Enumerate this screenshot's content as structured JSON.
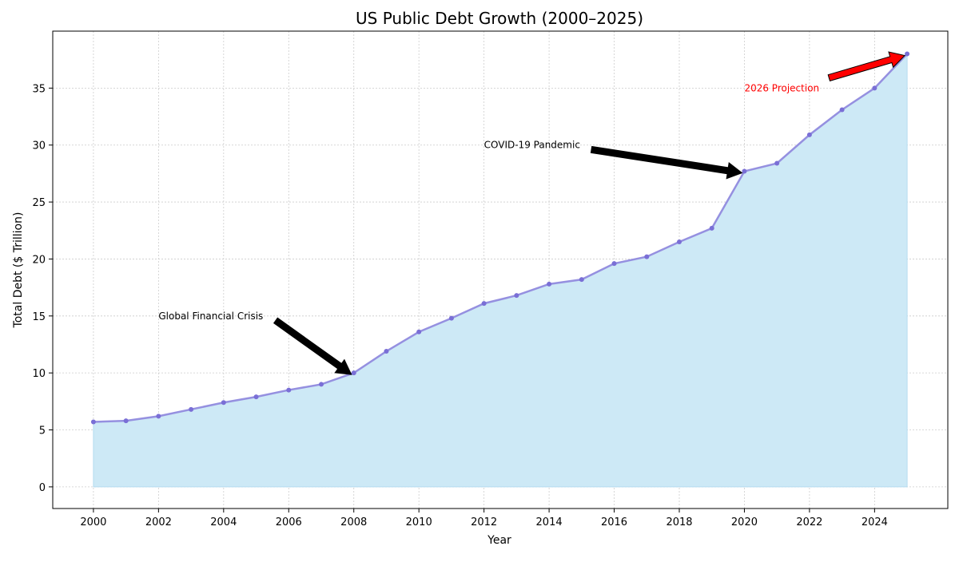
{
  "chart_data": {
    "type": "area",
    "title": "US Public Debt Growth (2000–2025)",
    "xlabel": "Year",
    "ylabel": "Total Debt ($ Trillion)",
    "xlim": [
      1998.75,
      2026.25
    ],
    "ylim": [
      -1.9,
      40
    ],
    "grid": true,
    "x_ticks": [
      2000,
      2002,
      2004,
      2006,
      2008,
      2010,
      2012,
      2014,
      2016,
      2018,
      2020,
      2022,
      2024
    ],
    "y_ticks": [
      0,
      5,
      10,
      15,
      20,
      25,
      30,
      35
    ],
    "x": [
      2000,
      2001,
      2002,
      2003,
      2004,
      2005,
      2006,
      2007,
      2008,
      2009,
      2010,
      2011,
      2012,
      2013,
      2014,
      2015,
      2016,
      2017,
      2018,
      2019,
      2020,
      2021,
      2022,
      2023,
      2024,
      2025
    ],
    "values": [
      5.7,
      5.8,
      6.2,
      6.8,
      7.4,
      7.9,
      8.5,
      9.0,
      10.0,
      11.9,
      13.6,
      14.8,
      16.1,
      16.8,
      17.8,
      18.2,
      19.6,
      20.2,
      21.5,
      22.7,
      27.7,
      28.4,
      30.9,
      33.1,
      35.0,
      38.0
    ],
    "colors": {
      "fill": "#cde9f6",
      "line": "#9590e0",
      "marker": "#7a6fd6",
      "projection": "#ff0000"
    },
    "annotations": [
      {
        "text": "Global Financial Crisis",
        "text_x": 2002,
        "text_y": 15,
        "target_x": 2008,
        "target_y": 10.0,
        "color": "#000000",
        "arrow_color": "#000000"
      },
      {
        "text": "COVID-19 Pandemic",
        "text_x": 2012,
        "text_y": 30,
        "target_x": 2020,
        "target_y": 27.7,
        "color": "#000000",
        "arrow_color": "#000000"
      },
      {
        "text": "2026 Projection",
        "text_x": 2020,
        "text_y": 35,
        "target_x": 2025,
        "target_y": 38.0,
        "color": "#ff0000",
        "arrow_color": "#ff0000"
      }
    ]
  }
}
